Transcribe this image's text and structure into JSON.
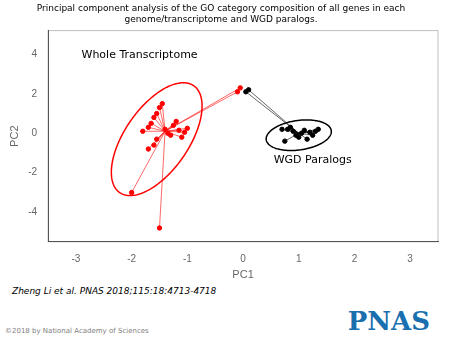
{
  "chart_data": {
    "type": "scatter",
    "title": "Principal component analysis of the GO category composition of all genes in each\ngenome/transcriptome and WGD paralogs.",
    "xlabel": "PC1",
    "ylabel": "PC2",
    "xlim": [
      -3.5,
      3.5
    ],
    "ylim": [
      -5.5,
      5.2
    ],
    "xticks": [
      -3,
      -2,
      -1,
      0,
      1,
      2,
      3
    ],
    "yticks": [
      -4,
      -2,
      0,
      2,
      4
    ],
    "grid": false,
    "series": [
      {
        "color": "red",
        "x": [
          -1.8,
          -1.7,
          -1.65,
          -1.6,
          -1.55,
          -1.5,
          -1.45,
          -1.4,
          -1.35,
          -1.3,
          -1.25,
          -1.2,
          -1.15,
          -1.1,
          -1.05,
          -1.0,
          -1.55,
          -1.6,
          -1.7,
          -2.0,
          -1.5,
          -0.1,
          -0.05
        ],
        "values": [
          0.1,
          0.3,
          0.5,
          0.8,
          1.0,
          1.3,
          1.5,
          0.2,
          0.0,
          -0.1,
          0.4,
          0.6,
          0.15,
          -0.2,
          0.05,
          0.25,
          -0.3,
          -0.6,
          -0.8,
          -3.0,
          -4.8,
          2.1,
          2.3
        ],
        "center": [
          -1.4,
          0.1
        ],
        "ellipse": {
          "cx": -1.55,
          "cy": -0.3,
          "width": 1.3,
          "height": 5.8,
          "angle": -10
        }
      },
      {
        "color": "black",
        "x": [
          0.8,
          0.85,
          0.9,
          0.95,
          1.0,
          1.05,
          1.1,
          1.15,
          1.2,
          1.25,
          1.3,
          0.75,
          0.7,
          1.35,
          0.05,
          0.1
        ],
        "values": [
          0.2,
          0.3,
          0.1,
          -0.1,
          -0.2,
          0.0,
          0.15,
          -0.3,
          0.05,
          -0.1,
          0.1,
          -0.4,
          0.2,
          0.2,
          2.1,
          2.2
        ],
        "center": [
          1.0,
          0.0
        ],
        "ellipse": {
          "cx": 1.0,
          "cy": -0.1,
          "width": 1.1,
          "height": 1.6,
          "angle": -20
        }
      }
    ],
    "annotations": [
      {
        "text": "Whole Transcriptome",
        "x": -2.9,
        "y": 3.8
      },
      {
        "text": "WGD Paralogs",
        "x": 0.55,
        "y": -1.5
      }
    ],
    "citation": "Zheng Li et al. PNAS 2018;115:18:4713-4718",
    "copyright": "©2018 by National Academy of Sciences",
    "logo": {
      "text": "PNAS",
      "color": "#1a6faf"
    }
  }
}
